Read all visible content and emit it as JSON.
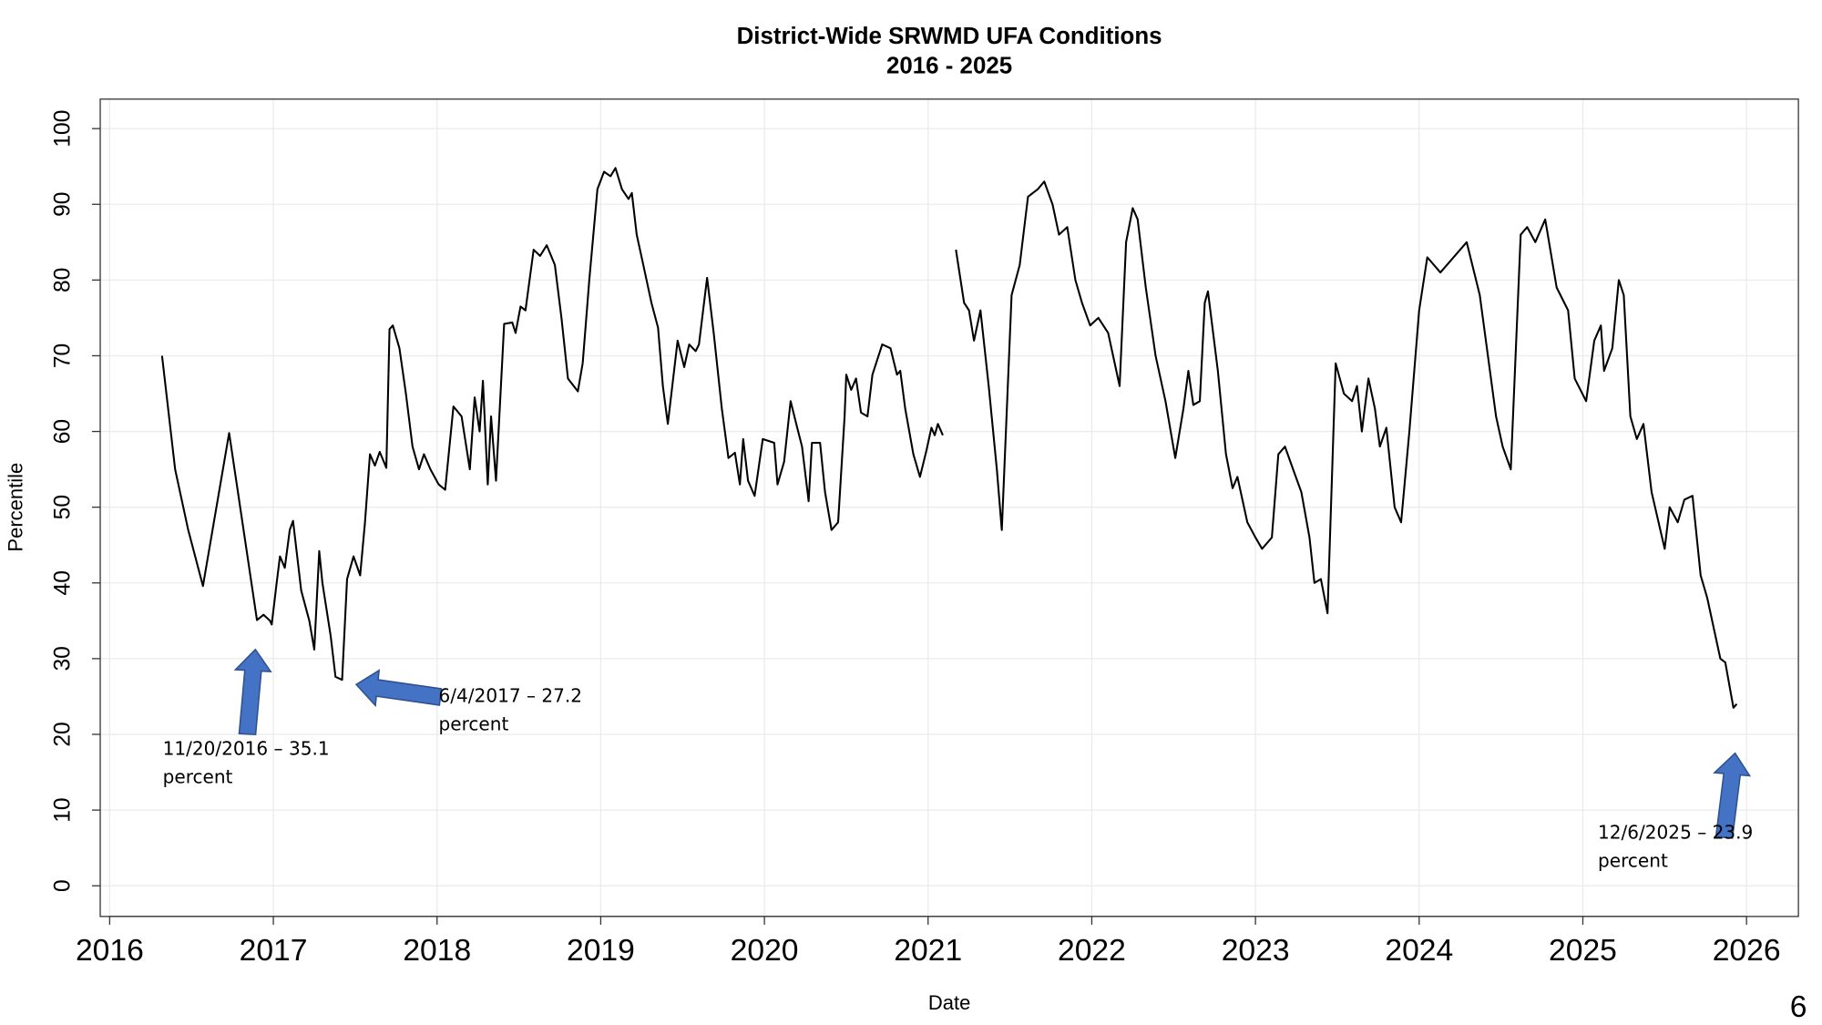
{
  "chart_data": {
    "type": "line",
    "title": "District-Wide SRWMD UFA Conditions",
    "subtitle": "2016 - 2025",
    "xlabel": "Date",
    "ylabel": "Percentile",
    "xlim": [
      2015.94,
      2026.32
    ],
    "ylim": [
      -4,
      104
    ],
    "grid": true,
    "xticks": [
      2016,
      2017,
      2018,
      2019,
      2020,
      2021,
      2022,
      2023,
      2024,
      2025,
      2026
    ],
    "yticks": [
      0,
      10,
      20,
      30,
      40,
      50,
      60,
      70,
      80,
      90,
      100
    ],
    "line_color": "#000000",
    "series": [
      {
        "name": "segment-1",
        "x": [
          2016.32,
          2016.4,
          2016.48,
          2016.57,
          2016.73,
          2016.9,
          2016.94,
          2016.98,
          2016.99,
          2017.02,
          2017.04,
          2017.07,
          2017.1,
          2017.12,
          2017.17,
          2017.22,
          2017.25,
          2017.28,
          2017.3,
          2017.35,
          2017.38,
          2017.42,
          2017.45,
          2017.49,
          2017.53,
          2017.56,
          2017.59,
          2017.62,
          2017.65,
          2017.69,
          2017.71,
          2017.73,
          2017.77,
          2017.81,
          2017.85,
          2017.89,
          2017.92,
          2017.96,
          2018.01,
          2018.05,
          2018.1,
          2018.15,
          2018.2,
          2018.23,
          2018.26,
          2018.28,
          2018.31,
          2018.33,
          2018.36,
          2018.41,
          2018.46,
          2018.48,
          2018.51,
          2018.54,
          2018.59,
          2018.63,
          2018.67,
          2018.72,
          2018.76,
          2018.8,
          2018.86,
          2018.89,
          2018.93,
          2018.98,
          2019.02,
          2019.06,
          2019.09,
          2019.13,
          2019.17,
          2019.19,
          2019.22,
          2019.26,
          2019.31,
          2019.35,
          2019.38,
          2019.41,
          2019.47,
          2019.51,
          2019.54,
          2019.58,
          2019.6,
          2019.65,
          2019.69,
          2019.74,
          2019.78,
          2019.82,
          2019.85,
          2019.87,
          2019.9,
          2019.94,
          2019.99,
          2020.06,
          2020.08,
          2020.12,
          2020.16,
          2020.2,
          2020.23,
          2020.27,
          2020.29,
          2020.34,
          2020.37,
          2020.41,
          2020.45,
          2020.49,
          2020.5,
          2020.53,
          2020.56,
          2020.59,
          2020.63,
          2020.66,
          2020.72,
          2020.77,
          2020.81,
          2020.83,
          2020.86,
          2020.91,
          2020.95,
          2020.99,
          2021.02,
          2021.04,
          2021.06,
          2021.09
        ],
        "y": [
          70,
          55,
          47,
          39.6,
          59.8,
          35.1,
          35.8,
          35,
          34.5,
          40,
          43.5,
          42,
          47,
          48.2,
          39,
          35,
          31.2,
          44.2,
          40,
          33,
          27.6,
          27.2,
          40.5,
          43.5,
          41,
          48,
          57,
          55.5,
          57.3,
          55.2,
          73.5,
          74,
          71,
          65,
          58,
          55,
          57,
          55,
          53,
          52.3,
          63.3,
          62,
          55,
          64.5,
          60,
          66.7,
          53,
          62,
          53.5,
          74.2,
          74.4,
          73,
          76.5,
          76,
          84,
          83.2,
          84.6,
          82,
          75,
          67,
          65.3,
          69,
          80,
          92,
          94.3,
          93.7,
          94.8,
          92,
          90.7,
          91.5,
          86,
          82,
          77,
          73.7,
          66,
          61,
          72,
          68.5,
          71.5,
          70.6,
          71.5,
          80.3,
          73,
          63,
          56.5,
          57.2,
          53,
          59,
          53.5,
          51.5,
          59,
          58.5,
          53,
          56,
          64,
          60.5,
          58,
          50.8,
          58.5,
          58.5,
          52,
          47,
          48,
          62,
          67.5,
          65.5,
          67,
          62.5,
          62,
          67.5,
          71.5,
          71,
          67.5,
          68,
          63,
          57,
          54,
          57.5,
          60.5,
          59.5,
          61,
          59.5
        ]
      },
      {
        "name": "segment-2",
        "x": [
          2021.17,
          2021.22,
          2021.25,
          2021.28,
          2021.32,
          2021.37,
          2021.42,
          2021.45,
          2021.51,
          2021.56,
          2021.61,
          2021.67,
          2021.71,
          2021.76,
          2021.8,
          2021.85,
          2021.9,
          2021.94,
          2021.99,
          2022.04,
          2022.1,
          2022.17,
          2022.21,
          2022.25,
          2022.28,
          2022.33,
          2022.39,
          2022.45,
          2022.51,
          2022.56,
          2022.59,
          2022.62,
          2022.66,
          2022.69,
          2022.71,
          2022.77,
          2022.82,
          2022.86,
          2022.89,
          2022.95,
          2023.0,
          2023.04,
          2023.1,
          2023.14,
          2023.18,
          2023.23,
          2023.28,
          2023.33,
          2023.36,
          2023.4,
          2023.44,
          2023.49,
          2023.54,
          2023.59,
          2023.62,
          2023.65,
          2023.69,
          2023.73,
          2023.76,
          2023.8,
          2023.85,
          2023.89,
          2023.94,
          2024.0,
          2024.05,
          2024.13,
          2024.29,
          2024.37,
          2024.47,
          2024.51,
          2024.56,
          2024.62,
          2024.66,
          2024.71,
          2024.77,
          2024.84,
          2024.91,
          2024.95,
          2025.02,
          2025.07,
          2025.11,
          2025.13,
          2025.18,
          2025.22,
          2025.25,
          2025.29,
          2025.33,
          2025.37,
          2025.42,
          2025.5,
          2025.53,
          2025.58,
          2025.62,
          2025.67,
          2025.72,
          2025.76,
          2025.84,
          2025.87,
          2025.92,
          2025.94
        ],
        "y": [
          84,
          77,
          76,
          72,
          76,
          66,
          55,
          47,
          78,
          82,
          91,
          92,
          93,
          90,
          86,
          87,
          80,
          77,
          74,
          75,
          73,
          66,
          85,
          89.5,
          88,
          79,
          70,
          64,
          56.5,
          63,
          68,
          63.5,
          64,
          77,
          78.5,
          68,
          57,
          52.5,
          54,
          48,
          46,
          44.5,
          46,
          57,
          58,
          55,
          52,
          46,
          40,
          40.5,
          36,
          69,
          65,
          64,
          66,
          60,
          67,
          63,
          58,
          60.5,
          50,
          48,
          60,
          76,
          83,
          81,
          85,
          78,
          62,
          58,
          55,
          86,
          87,
          85,
          88,
          79,
          76,
          67,
          64,
          72,
          74,
          68,
          71,
          80,
          78,
          62,
          59,
          61,
          52,
          44.5,
          50,
          48,
          51,
          51.5,
          41,
          38,
          30,
          29.5,
          23.5,
          24
        ]
      }
    ],
    "annotations": [
      {
        "line1": "11/20/2016 – 35.1",
        "line2": "percent",
        "x": 2016.89,
        "y": 35.1,
        "arrow": "up"
      },
      {
        "line1": "6/4/2017 – 27.2",
        "line2": "percent",
        "x": 2017.42,
        "y": 27.2,
        "arrow": "left"
      },
      {
        "line1": "12/6/2025 – 23.9",
        "line2": "percent",
        "x": 2025.93,
        "y": 23.9,
        "arrow": "up"
      }
    ],
    "arrow_color": "#4472C4"
  },
  "page_number": "6"
}
